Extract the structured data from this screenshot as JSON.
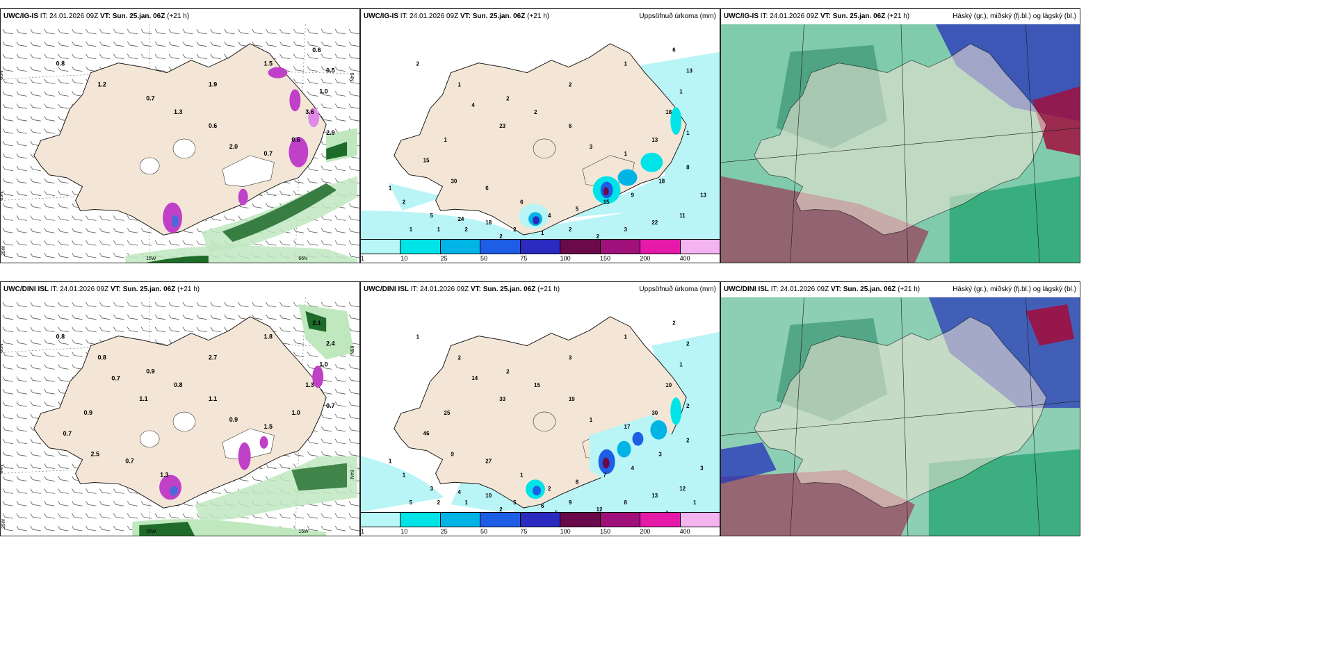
{
  "panels": [
    {
      "id": "p1",
      "model": "UWC/IG-IS",
      "it_label": "IT:",
      "it": "24.01.2026 09Z",
      "vt_label": "VT:",
      "vt": "Sun. 25.jan. 06Z",
      "lead": "(+21 h)",
      "right_title": "",
      "type": "wind",
      "numbers": [
        "0.8",
        "1.2",
        "0.7",
        "1.9",
        "1.5",
        "0.6",
        "0.5",
        "1.0",
        "3.6",
        "2.9",
        "0.6",
        "0.7",
        "2.0",
        "0.6",
        "1.3"
      ],
      "axis_labels": [
        "66N",
        "65N",
        "25W",
        "15W",
        "66N",
        "64N"
      ]
    },
    {
      "id": "p2",
      "model": "UWC/IG-IS",
      "it_label": "IT:",
      "it": "24.01.2026 09Z",
      "vt_label": "VT:",
      "vt": "Sun. 25.jan. 06Z",
      "lead": "(+21 h)",
      "right_title": "Uppsöfnuð úrkoma (mm)",
      "type": "precip",
      "numbers": [
        "2",
        "1",
        "2",
        "2",
        "1",
        "6",
        "13",
        "1",
        "18",
        "1",
        "13",
        "1",
        "3",
        "6",
        "2",
        "23",
        "4",
        "1",
        "15",
        "30",
        "6",
        "6",
        "4",
        "5",
        "15",
        "9",
        "18",
        "8",
        "13",
        "11",
        "22",
        "3",
        "2",
        "2",
        "1",
        "2",
        "18",
        "24",
        "5",
        "2",
        "1",
        "1",
        "1",
        "2",
        "2"
      ]
    },
    {
      "id": "p3",
      "model": "UWC/IG-IS",
      "it_label": "IT:",
      "it": "24.01.2026 09Z",
      "vt_label": "VT:",
      "vt": "Sun. 25.jan. 06Z",
      "lead": "(+21 h)",
      "right_title": "Háský (gr.), miðský (fj.bl.) og lágský (bl.)",
      "type": "cloud"
    },
    {
      "id": "p4",
      "model": "UWC/DINI ISL",
      "it_label": "IT:",
      "it": "24.01.2026 09Z",
      "vt_label": "VT:",
      "vt": "Sun. 25.jan. 06Z",
      "lead": "(+21 h)",
      "right_title": "",
      "type": "wind",
      "numbers": [
        "0.8",
        "0.8",
        "0.9",
        "2.7",
        "1.8",
        "2.1",
        "2.4",
        "1.0",
        "1.3",
        "0.7",
        "1.0",
        "1.5",
        "0.9",
        "1.1",
        "0.8",
        "1.1",
        "0.7",
        "0.9",
        "0.7",
        "2.5",
        "0.7",
        "1.3"
      ],
      "axis_labels": [
        "66N",
        "64N",
        "25W",
        "20W",
        "15W",
        "65N",
        "64N"
      ]
    },
    {
      "id": "p5",
      "model": "UWC/DINI ISL",
      "it_label": "IT:",
      "it": "24.01.2026 09Z",
      "vt_label": "VT:",
      "vt": "Sun. 25.jan. 06Z",
      "lead": "(+21 h)",
      "right_title": "Uppsöfnuð úrkoma (mm)",
      "type": "precip",
      "numbers": [
        "1",
        "2",
        "2",
        "3",
        "1",
        "2",
        "2",
        "1",
        "10",
        "2",
        "30",
        "17",
        "1",
        "19",
        "15",
        "33",
        "14",
        "25",
        "46",
        "9",
        "27",
        "1",
        "2",
        "8",
        "7",
        "4",
        "3",
        "2",
        "3",
        "12",
        "13",
        "8",
        "12",
        "9",
        "6",
        "5",
        "10",
        "4",
        "3",
        "1",
        "1",
        "5",
        "2",
        "1",
        "2",
        "2",
        "5",
        "6",
        "4",
        "2",
        "1",
        "1",
        "1"
      ]
    },
    {
      "id": "p6",
      "model": "UWC/DINI ISL",
      "it_label": "IT:",
      "it": "24.01.2026 09Z",
      "vt_label": "VT:",
      "vt": "Sun. 25.jan. 06Z",
      "lead": "(+21 h)",
      "right_title": "Háský (gr.), miðský (fj.bl.) og lágský (bl.)",
      "type": "cloud"
    }
  ],
  "legend": {
    "labels": [
      "1",
      "10",
      "25",
      "50",
      "75",
      "100",
      "150",
      "200",
      "400"
    ],
    "colors": [
      "#b8f7f7",
      "#00e4e8",
      "#00b4e6",
      "#1e5ee6",
      "#2a2ac0",
      "#6a0a4a",
      "#a0107a",
      "#e61aa8",
      "#f4b4f0"
    ]
  },
  "colors": {
    "land": "#f4e6d6",
    "coast": "#1a1a1a",
    "sea_precip": "#b9f5f7",
    "cloud_high": "#1aa06a",
    "cloud_mid": "#2a3ab8",
    "cloud_low": "#a01040",
    "wind_green": "#1f6b2a",
    "wind_light": "#bfe8bf",
    "heavy": "#c040c8"
  }
}
